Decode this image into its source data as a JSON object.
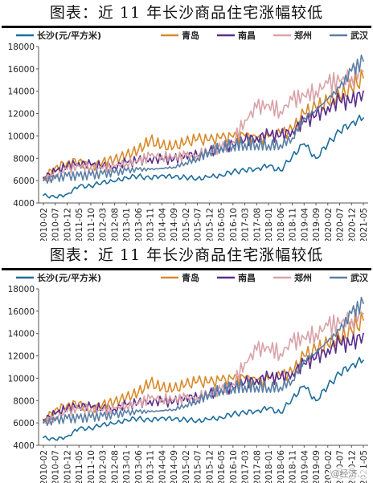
{
  "watermark": "@经济...",
  "chart_data": [
    {
      "type": "line",
      "title": "图表：近 11 年长沙商品住宅涨幅较低",
      "ylim": [
        4000,
        18000
      ],
      "yticks": [
        4000,
        6000,
        8000,
        10000,
        12000,
        14000,
        16000,
        18000
      ],
      "x_tick_labels": [
        "2010-02",
        "2010-07",
        "2010-12",
        "2011-05",
        "2011-10",
        "2012-03",
        "2012-08",
        "2013-01",
        "2013-06",
        "2013-11",
        "2014-04",
        "2014-09",
        "2015-02",
        "2015-07",
        "2015-12",
        "2016-05",
        "2016-10",
        "2017-03",
        "2017-08",
        "2018-01",
        "2018-06",
        "2018-11",
        "2019-04",
        "2019-09",
        "2020-02",
        "2020-07",
        "2020-12",
        "2021-05"
      ],
      "legend_placement": "top",
      "series": [
        {
          "name": "长沙(元/平方米)",
          "color": "#1f6e9c",
          "values": [
            4700,
            4500,
            4800,
            5500,
            5500,
            5900,
            5900,
            6300,
            6400,
            6200,
            6500,
            6300,
            6300,
            6200,
            6300,
            6500,
            6800,
            6900,
            7100,
            7300,
            6900,
            8200,
            9300,
            8000,
            9300,
            10400,
            11200,
            11600
          ]
        },
        {
          "name": "青岛",
          "color": "#d98a2b",
          "values": [
            6200,
            7200,
            7600,
            7800,
            7200,
            7700,
            7900,
            8300,
            8700,
            9600,
            9100,
            9000,
            9400,
            9700,
            9600,
            9800,
            9900,
            10000,
            9700,
            9900,
            10200,
            10500,
            12000,
            12500,
            13000,
            13500,
            14300,
            15200
          ]
        },
        {
          "name": "南昌",
          "color": "#5a2d8c",
          "values": [
            6300,
            6800,
            7300,
            7600,
            7400,
            7300,
            7300,
            7600,
            7800,
            8000,
            7900,
            7900,
            8400,
            8200,
            8600,
            9000,
            9100,
            9600,
            9900,
            10100,
            10000,
            10500,
            11300,
            11800,
            12600,
            13200,
            13000,
            14000
          ]
        },
        {
          "name": "郑州",
          "color": "#d9a3a8",
          "values": [
            6100,
            6500,
            7000,
            7300,
            7200,
            7100,
            7300,
            7600,
            7700,
            8200,
            8200,
            8100,
            8200,
            8300,
            8600,
            8900,
            9500,
            11400,
            12500,
            12800,
            12200,
            13200,
            13600,
            14000,
            14700,
            14900,
            15300,
            15800
          ]
        },
        {
          "name": "武汉",
          "color": "#5b7fa6",
          "values": [
            6000,
            6200,
            6400,
            6400,
            6500,
            6600,
            6700,
            6900,
            7000,
            7000,
            7100,
            7200,
            7600,
            8000,
            8600,
            9000,
            9200,
            9300,
            9300,
            9200,
            9200,
            9800,
            11600,
            12300,
            13300,
            14300,
            15800,
            16700
          ]
        }
      ]
    },
    {
      "type": "line",
      "title": "图表：近 11 年长沙商品住宅涨幅较低",
      "ylim": [
        4000,
        18000
      ],
      "yticks": [
        4000,
        6000,
        8000,
        10000,
        12000,
        14000,
        16000,
        18000
      ],
      "x_tick_labels": [
        "2010-02",
        "2010-07",
        "2010-12",
        "2011-05",
        "2011-10",
        "2012-03",
        "2012-08",
        "2013-01",
        "2013-06",
        "2013-11",
        "2014-04",
        "2014-09",
        "2015-02",
        "2015-07",
        "2015-12",
        "2016-05",
        "2016-10",
        "2017-03",
        "2017-08",
        "2018-01",
        "2018-06",
        "2018-11",
        "2019-04",
        "2019-09",
        "2020-02",
        "2020-07",
        "2020-12",
        "2021-05"
      ],
      "legend_placement": "top",
      "series": [
        {
          "name": "长沙(元/平方米)",
          "color": "#1f6e9c",
          "values": [
            4700,
            4500,
            4800,
            5500,
            5500,
            5900,
            5900,
            6300,
            6400,
            6200,
            6500,
            6300,
            6300,
            6200,
            6300,
            6500,
            6800,
            6900,
            7100,
            7300,
            6900,
            8200,
            9300,
            8000,
            9300,
            10400,
            11200,
            11600
          ]
        },
        {
          "name": "青岛",
          "color": "#d98a2b",
          "values": [
            6200,
            7200,
            7600,
            7800,
            7200,
            7700,
            7900,
            8300,
            8700,
            9600,
            9100,
            9000,
            9400,
            9700,
            9600,
            9800,
            9900,
            10000,
            9700,
            9900,
            10200,
            10500,
            12000,
            12500,
            13000,
            13500,
            14300,
            15200
          ]
        },
        {
          "name": "南昌",
          "color": "#5a2d8c",
          "values": [
            6300,
            6800,
            7300,
            7600,
            7400,
            7300,
            7300,
            7600,
            7800,
            8000,
            7900,
            7900,
            8400,
            8200,
            8600,
            9000,
            9100,
            9600,
            9900,
            10100,
            10000,
            10500,
            11300,
            11800,
            12600,
            13200,
            13000,
            14000
          ]
        },
        {
          "name": "郑州",
          "color": "#d9a3a8",
          "values": [
            6100,
            6500,
            7000,
            7300,
            7200,
            7100,
            7300,
            7600,
            7700,
            8200,
            8200,
            8100,
            8200,
            8300,
            8600,
            8900,
            9500,
            11400,
            12500,
            12800,
            12200,
            13200,
            13600,
            14000,
            14700,
            14900,
            15300,
            15800
          ]
        },
        {
          "name": "武汉",
          "color": "#5b7fa6",
          "values": [
            6000,
            6200,
            6400,
            6400,
            6500,
            6600,
            6700,
            6900,
            7000,
            7000,
            7100,
            7200,
            7600,
            8000,
            8600,
            9000,
            9200,
            9300,
            9300,
            9200,
            9200,
            9800,
            11600,
            12300,
            13300,
            14300,
            15800,
            16700
          ]
        }
      ]
    }
  ]
}
